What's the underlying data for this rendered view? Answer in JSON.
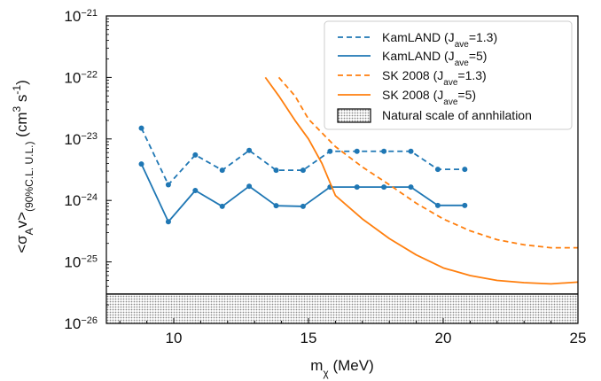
{
  "chart_data": {
    "type": "line",
    "xlabel": {
      "main": "m",
      "sub": "χ",
      "rest": " (MeV)"
    },
    "ylabel": {
      "pre": "<σ",
      "sub1": "A",
      "mid": "v>",
      "sub2": "(90%C.L. U.L.)",
      "post": " (cm",
      "sup": "3",
      "post2": " s",
      "sup2": "-1",
      "end": ")"
    },
    "xlim": [
      7.5,
      25
    ],
    "ylim": [
      1e-26,
      1e-21
    ],
    "yscale": "log",
    "grid": false,
    "legend_position": "top-right",
    "x_ticks": [
      {
        "value": 10,
        "label": "10"
      },
      {
        "value": 15,
        "label": "15"
      },
      {
        "value": 20,
        "label": "20"
      },
      {
        "value": 25,
        "label": "25"
      }
    ],
    "y_ticks": [
      {
        "value": 1e-26,
        "base": "10",
        "exp": "−26"
      },
      {
        "value": 1e-25,
        "base": "10",
        "exp": "−25"
      },
      {
        "value": 1e-24,
        "base": "10",
        "exp": "−24"
      },
      {
        "value": 1e-23,
        "base": "10",
        "exp": "−23"
      },
      {
        "value": 1e-22,
        "base": "10",
        "exp": "−22"
      },
      {
        "value": 1e-21,
        "base": "10",
        "exp": "−21"
      }
    ],
    "series": [
      {
        "name": {
          "pre": "KamLAND (J",
          "sub": "ave",
          "post": "=1.3)"
        },
        "color": "#1f77b4",
        "dash": true,
        "markers": true,
        "points": [
          [
            8.8,
            1.5e-23
          ],
          [
            9.8,
            1.8e-24
          ],
          [
            10.8,
            5.5e-24
          ],
          [
            11.8,
            3.1e-24
          ],
          [
            12.8,
            6.5e-24
          ],
          [
            13.8,
            3.1e-24
          ],
          [
            14.8,
            3.1e-24
          ],
          [
            15.8,
            6.3e-24
          ],
          [
            16.8,
            6.3e-24
          ],
          [
            17.8,
            6.3e-24
          ],
          [
            18.8,
            6.3e-24
          ],
          [
            19.8,
            3.2e-24
          ],
          [
            20.8,
            3.2e-24
          ]
        ]
      },
      {
        "name": {
          "pre": "KamLAND (J",
          "sub": "ave",
          "post": "=5)"
        },
        "color": "#1f77b4",
        "dash": false,
        "markers": true,
        "points": [
          [
            8.8,
            3.9e-24
          ],
          [
            9.8,
            4.5e-25
          ],
          [
            10.8,
            1.45e-24
          ],
          [
            11.8,
            8e-25
          ],
          [
            12.8,
            1.7e-24
          ],
          [
            13.8,
            8.2e-25
          ],
          [
            14.8,
            8e-25
          ],
          [
            15.8,
            1.65e-24
          ],
          [
            16.8,
            1.65e-24
          ],
          [
            17.8,
            1.65e-24
          ],
          [
            18.8,
            1.65e-24
          ],
          [
            19.8,
            8.3e-25
          ],
          [
            20.8,
            8.3e-25
          ]
        ]
      },
      {
        "name": {
          "pre": "SK 2008 (J",
          "sub": "ave",
          "post": "=1.3)"
        },
        "color": "#ff7f0e",
        "dash": true,
        "markers": false,
        "points": [
          [
            13.9,
            1e-22
          ],
          [
            14.5,
            5e-23
          ],
          [
            15,
            2.1e-23
          ],
          [
            16,
            7.5e-24
          ],
          [
            17,
            3.5e-24
          ],
          [
            18,
            1.8e-24
          ],
          [
            19,
            9e-25
          ],
          [
            20,
            5e-25
          ],
          [
            21,
            3.2e-25
          ],
          [
            22,
            2.3e-25
          ],
          [
            23,
            1.9e-25
          ],
          [
            24,
            1.7e-25
          ],
          [
            25,
            1.7e-25
          ]
        ]
      },
      {
        "name": {
          "pre": "SK 2008 (J",
          "sub": "ave",
          "post": "=5)"
        },
        "color": "#ff7f0e",
        "dash": false,
        "markers": false,
        "points": [
          [
            13.4,
            1e-22
          ],
          [
            13.9,
            5e-23
          ],
          [
            14.5,
            2e-23
          ],
          [
            15,
            1e-23
          ],
          [
            15.5,
            4e-24
          ],
          [
            16,
            1.2e-24
          ],
          [
            17,
            5e-25
          ],
          [
            18,
            2.4e-25
          ],
          [
            19,
            1.3e-25
          ],
          [
            20,
            8e-26
          ],
          [
            21,
            6e-26
          ],
          [
            22,
            5e-26
          ],
          [
            23,
            4.6e-26
          ],
          [
            24,
            4.4e-26
          ],
          [
            25,
            4.7e-26
          ]
        ]
      }
    ],
    "band": {
      "name": "Natural scale of annhilation",
      "upper": 3e-26,
      "lower": 1e-26,
      "color": "#d9d9d9"
    }
  }
}
